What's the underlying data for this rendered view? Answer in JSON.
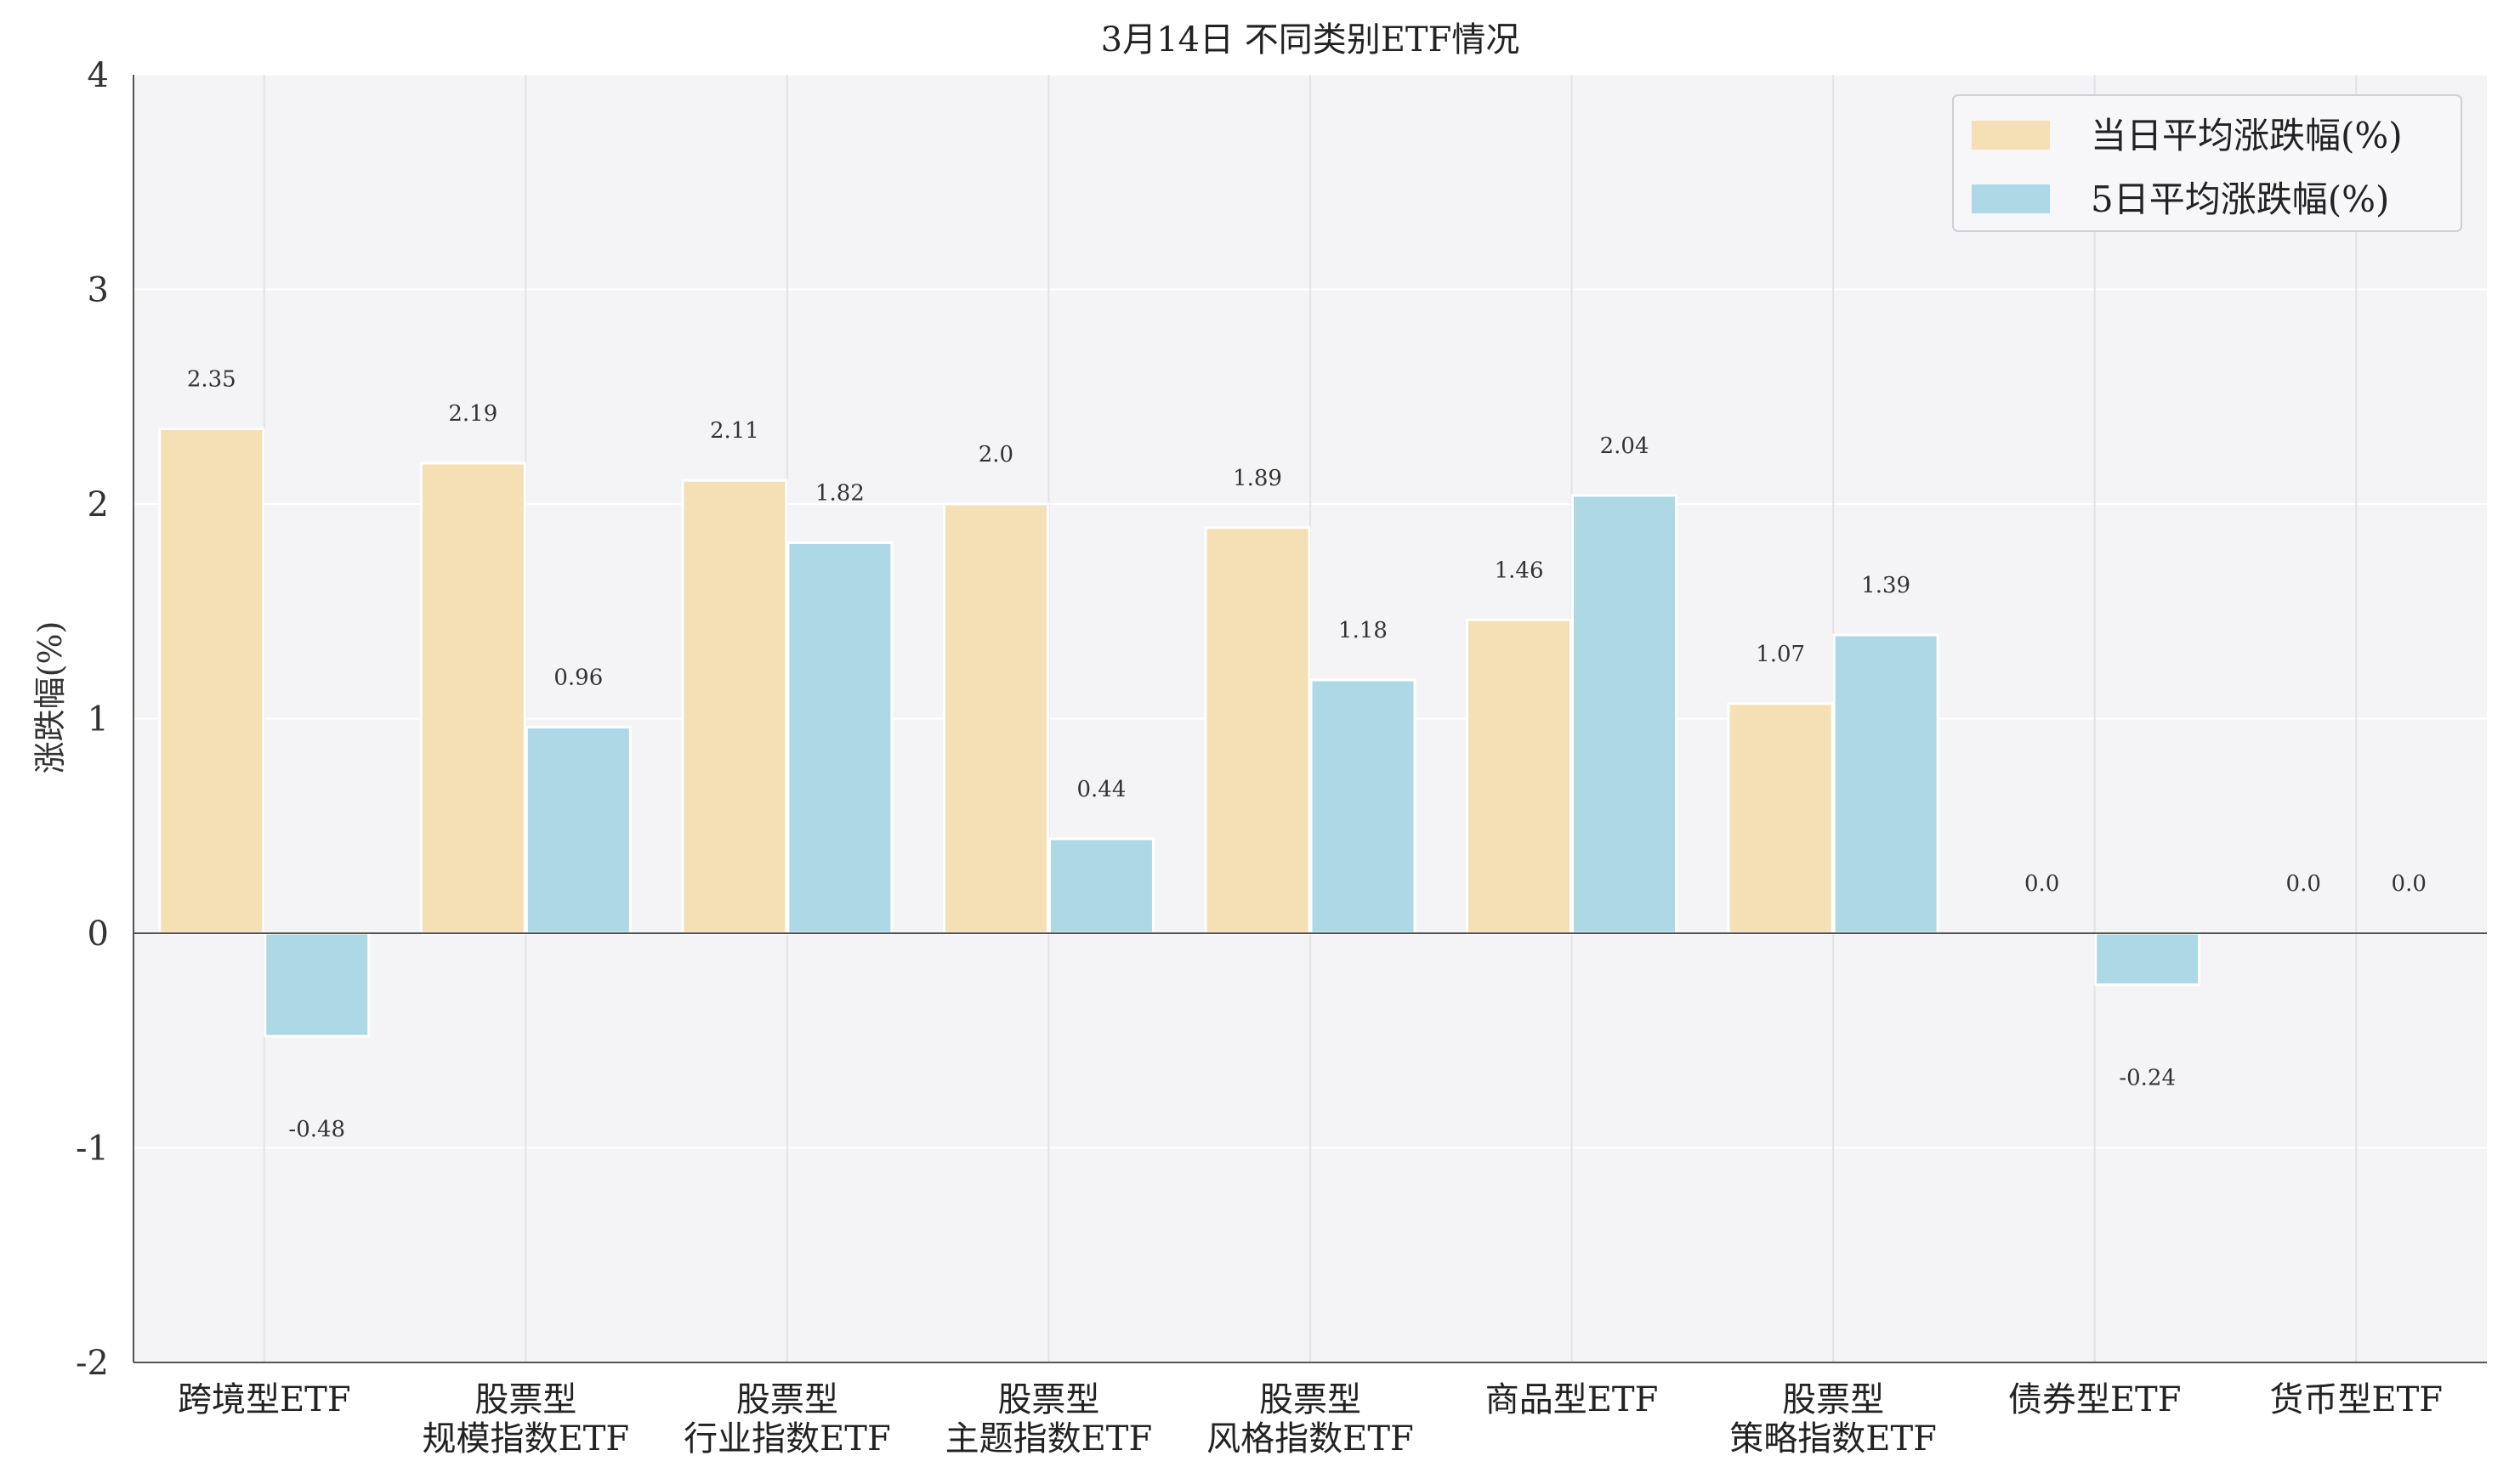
{
  "chart_data": {
    "type": "bar",
    "title": "3月14日 不同类别ETF情况",
    "xlabel": "",
    "ylabel": "涨跌幅(%)",
    "ylim": [
      -2,
      4
    ],
    "yticks": [
      "-2",
      "-1",
      "0",
      "1",
      "2",
      "3",
      "4"
    ],
    "grid": true,
    "legend_position": "top-right",
    "categories": [
      [
        "跨境型ETF"
      ],
      [
        "股票型",
        "规模指数ETF"
      ],
      [
        "股票型",
        "行业指数ETF"
      ],
      [
        "股票型",
        "主题指数ETF"
      ],
      [
        "股票型",
        "风格指数ETF"
      ],
      [
        "商品型ETF"
      ],
      [
        "股票型",
        "策略指数ETF"
      ],
      [
        "债券型ETF"
      ],
      [
        "货币型ETF"
      ]
    ],
    "series": [
      {
        "name": "当日平均涨跌幅(%)",
        "color": "#f5dfb4",
        "values": [
          2.35,
          2.19,
          2.11,
          2.0,
          1.89,
          1.46,
          1.07,
          0.0,
          0.0
        ],
        "labels": [
          "2.35",
          "2.19",
          "2.11",
          "2.0",
          "1.89",
          "1.46",
          "1.07",
          "0.0",
          "0.0"
        ]
      },
      {
        "name": "5日平均涨跌幅(%)",
        "color": "#add8e6",
        "values": [
          -0.48,
          0.96,
          1.82,
          0.44,
          1.18,
          2.04,
          1.39,
          -0.24,
          0.0
        ],
        "labels": [
          "-0.48",
          "0.96",
          "1.82",
          "0.44",
          "1.18",
          "2.04",
          "1.39",
          "-0.24",
          "0.0"
        ]
      }
    ]
  }
}
